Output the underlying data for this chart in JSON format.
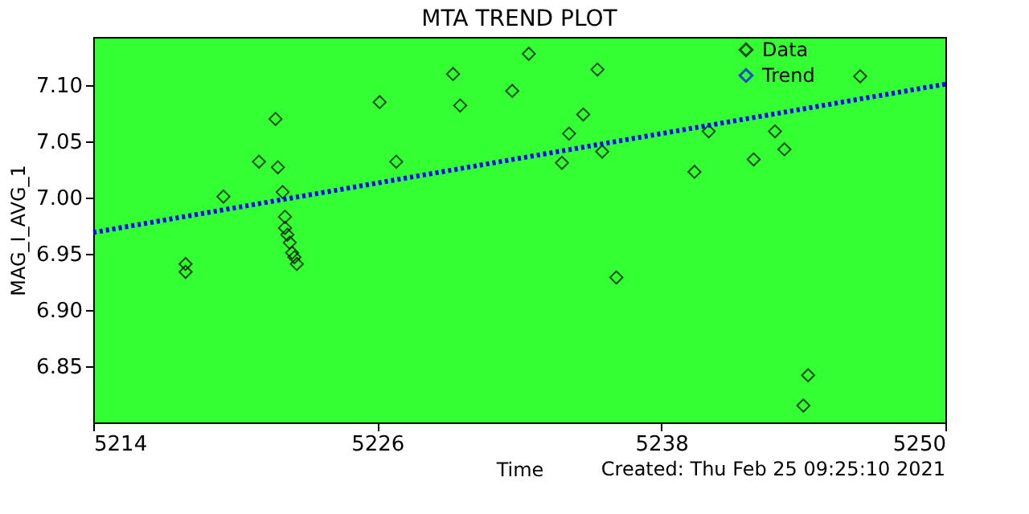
{
  "chart_data": {
    "type": "scatter",
    "title": "MTA TREND PLOT",
    "xlabel": "Time",
    "ylabel": "MAG_I_AVG_1",
    "annotations": [
      "Created: Thu Feb 25 09:25:10 2021"
    ],
    "series": [
      {
        "name": "Data",
        "color": "#000000",
        "marker": "diamond",
        "x": [
          5217.9,
          5217.9,
          5219.5,
          5221.0,
          5221.7,
          5221.8,
          5222.0,
          5222.1,
          5222.1,
          5222.2,
          5222.3,
          5222.4,
          5222.5,
          5222.6,
          5226.1,
          5226.8,
          5229.2,
          5229.5,
          5231.7,
          5232.4,
          5233.8,
          5234.1,
          5234.7,
          5235.3,
          5235.5,
          5236.1,
          5239.4,
          5240.0,
          5241.9,
          5242.8,
          5243.2,
          5244.2,
          5244.0,
          5246.4
        ],
        "values": [
          6.941,
          6.934,
          7.001,
          7.032,
          7.07,
          7.027,
          7.005,
          6.983,
          6.973,
          6.967,
          6.96,
          6.951,
          6.947,
          6.941,
          7.085,
          7.032,
          7.11,
          7.082,
          7.095,
          7.128,
          7.031,
          7.057,
          7.074,
          7.114,
          7.041,
          6.929,
          7.023,
          7.059,
          7.034,
          7.059,
          7.043,
          6.842,
          6.815,
          7.108
        ]
      },
      {
        "name": "Trend",
        "type": "line",
        "color": "#0000ff",
        "line_style": "dotted",
        "x": [
          5214,
          5250
        ],
        "values": [
          6.969,
          7.101
        ]
      }
    ],
    "xlim": [
      5214,
      5250
    ],
    "xticks": [
      5214,
      5226,
      5238,
      5250
    ],
    "ylim": [
      6.8,
      7.143
    ],
    "yticks": [
      6.85,
      {
        "value": 6.9,
        "label": "6.90"
      },
      6.95,
      {
        "value": 7.0,
        "label": "7.00"
      },
      7.05,
      {
        "value": 7.1,
        "label": "7.10"
      }
    ],
    "grid": false,
    "legend": "top right"
  }
}
